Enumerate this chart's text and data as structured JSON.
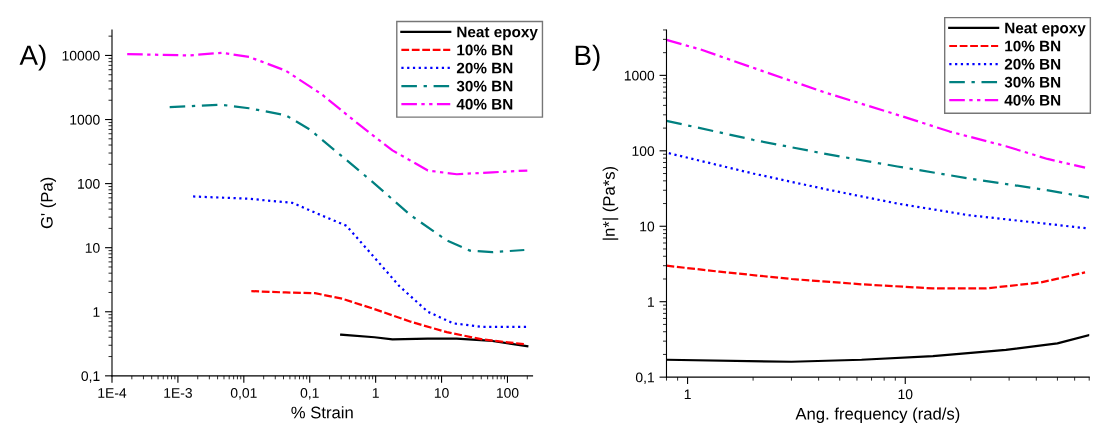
{
  "chart_data": [
    {
      "type": "line",
      "title": "A)",
      "xlabel": "% Strain",
      "ylabel": "G' (Pa)",
      "log": "xy",
      "legend": "top right",
      "grid": false,
      "xlim": [
        0.0001,
        240
      ],
      "ylim": [
        0.1,
        25000
      ],
      "xticks": [
        {
          "value": 0.0001,
          "label": "1E-4"
        },
        {
          "value": 0.001,
          "label": "1E-3"
        },
        {
          "value": 0.01,
          "label": "0,01"
        },
        {
          "value": 0.1,
          "label": "0,1"
        },
        1,
        10,
        100
      ],
      "yticks": [
        {
          "value": 0.1,
          "label": "0,1"
        },
        1,
        10,
        100,
        1000,
        10000
      ],
      "series": [
        {
          "name": "Neat epoxy",
          "color": "#000000",
          "line_style": "solid",
          "x": [
            0.3,
            0.96,
            1.8,
            6.2,
            17,
            59,
            200
          ],
          "values": [
            0.44,
            0.4,
            0.37,
            0.38,
            0.38,
            0.35,
            0.29
          ]
        },
        {
          "name": "10% BN",
          "color": "#ff0000",
          "line_style": "dashed",
          "x": [
            0.013,
            0.043,
            0.12,
            0.31,
            0.96,
            3.4,
            12,
            42,
            190
          ],
          "values": [
            2.1,
            2.0,
            1.95,
            1.6,
            1.1,
            0.7,
            0.48,
            0.37,
            0.31
          ]
        },
        {
          "name": "20% BN",
          "color": "#0000ff",
          "line_style": "dotted",
          "x": [
            0.0017,
            0.012,
            0.055,
            0.15,
            0.36,
            0.96,
            2.3,
            6.2,
            15,
            42,
            200
          ],
          "values": [
            63,
            58,
            50,
            32,
            22,
            7,
            2.5,
            1.0,
            0.66,
            0.58,
            0.58
          ]
        },
        {
          "name": "30% BN",
          "color": "#008080",
          "line_style": "dashdot",
          "x": [
            0.00075,
            0.0046,
            0.012,
            0.043,
            0.1,
            0.28,
            0.96,
            3.4,
            12,
            27,
            59,
            180
          ],
          "values": [
            1560,
            1700,
            1500,
            1170,
            700,
            290,
            100,
            32,
            13,
            9,
            8.5,
            9.2
          ]
        },
        {
          "name": "40% BN",
          "color": "#ff00ff",
          "line_style": "dashdotdot",
          "x": [
            0.00017,
            0.0015,
            0.0046,
            0.012,
            0.043,
            0.15,
            0.51,
            1.8,
            6.2,
            17,
            59,
            200
          ],
          "values": [
            10500,
            10000,
            11000,
            9500,
            5800,
            2500,
            900,
            330,
            160,
            140,
            150,
            160
          ]
        }
      ]
    },
    {
      "type": "line",
      "title": "B)",
      "xlabel": "Ang. frequency (rad/s)",
      "ylabel": "|n*| (Pa*s)",
      "log": "xy",
      "legend": "top right",
      "grid": false,
      "xlim": [
        0.8,
        70
      ],
      "ylim": [
        0.1,
        4000
      ],
      "xticks": [
        1,
        10
      ],
      "yticks": [
        {
          "value": 0.1,
          "label": "0,1"
        },
        1,
        10,
        100,
        1000
      ],
      "series": [
        {
          "name": "Neat epoxy",
          "color": "#000000",
          "line_style": "solid",
          "x": [
            0.8,
            3.0,
            6.3,
            13.4,
            29,
            50,
            70
          ],
          "values": [
            0.17,
            0.16,
            0.17,
            0.19,
            0.23,
            0.28,
            0.36
          ]
        },
        {
          "name": "10% BN",
          "color": "#ff0000",
          "line_style": "dashed",
          "x": [
            0.8,
            1.4,
            3.0,
            6.3,
            13.4,
            23.6,
            42,
            67
          ],
          "values": [
            3.0,
            2.5,
            2.0,
            1.7,
            1.5,
            1.5,
            1.8,
            2.45
          ]
        },
        {
          "name": "20% BN",
          "color": "#0000ff",
          "line_style": "dotted",
          "x": [
            0.82,
            2.0,
            4.3,
            9.2,
            19.6,
            42,
            70
          ],
          "values": [
            93,
            50,
            31,
            20,
            14,
            11,
            9.3
          ]
        },
        {
          "name": "30% BN",
          "color": "#008080",
          "line_style": "dashdot",
          "x": [
            0.8,
            2.0,
            4.3,
            9.2,
            19.6,
            42,
            70
          ],
          "values": [
            250,
            140,
            91,
            62,
            43,
            31,
            24
          ]
        },
        {
          "name": "40% BN",
          "color": "#ff00ff",
          "line_style": "dashdotdot",
          "x": [
            0.8,
            1.15,
            2.0,
            4.3,
            9.2,
            16,
            29,
            45,
            67
          ],
          "values": [
            2950,
            2200,
            1260,
            590,
            300,
            180,
            115,
            78,
            60
          ]
        }
      ]
    }
  ]
}
